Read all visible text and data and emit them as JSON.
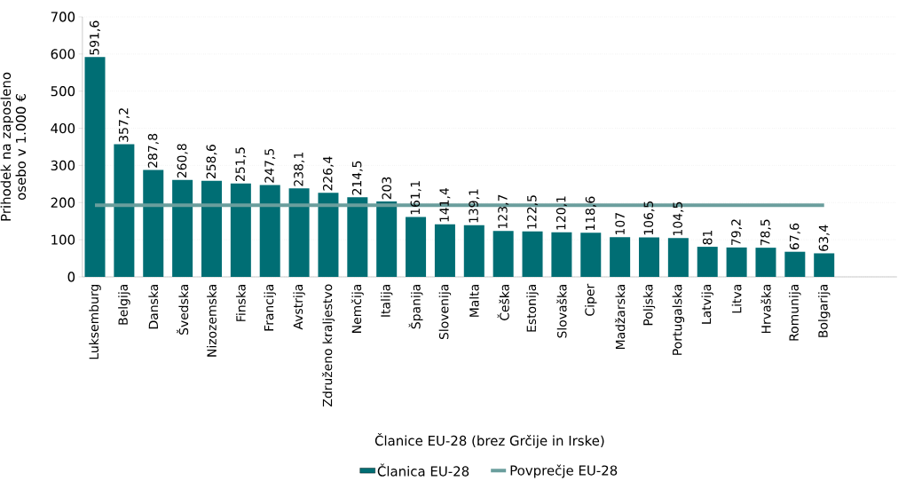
{
  "chart_data": {
    "type": "bar",
    "xlabel": "Članice EU-28 (brez Grčije in Irske)",
    "ylabel": "Prihodek na zaposleno osebo v 1.000 €",
    "categories": [
      "Luksemburg",
      "Belgija",
      "Danska",
      "Švedska",
      "Nizozemska",
      "Finska",
      "Francija",
      "Avstrija",
      "Združeno kraljestvo",
      "Nemčija",
      "Italija",
      "Španija",
      "Slovenija",
      "Malta",
      "Češka",
      "Estonija",
      "Slovaška",
      "Ciper",
      "Madžarska",
      "Poljska",
      "Portugalska",
      "Latvija",
      "Litva",
      "Hrvaška",
      "Romunija",
      "Bolgarija"
    ],
    "series": [
      {
        "name": "Članica EU-28",
        "color": "#006e74",
        "values": [
          591.6,
          357.2,
          287.8,
          260.8,
          258.6,
          251.5,
          247.5,
          238.1,
          226.4,
          214.5,
          203,
          161.1,
          141.4,
          139.1,
          123.7,
          122.5,
          120.1,
          118.6,
          107,
          106.5,
          104.5,
          81,
          79.2,
          78.5,
          67.6,
          63.4
        ],
        "value_labels": [
          "591,6",
          "357,2",
          "287,8",
          "260,8",
          "258,6",
          "251,5",
          "247,5",
          "238,1",
          "226,4",
          "214,5",
          "203",
          "161,1",
          "141,4",
          "139,1",
          "123,7",
          "122,5",
          "120,1",
          "118,6",
          "107",
          "106,5",
          "104,5",
          "81",
          "79,2",
          "78,5",
          "67,6",
          "63,4"
        ]
      },
      {
        "name": "Povprečje EU-28",
        "type": "line",
        "color": "#6a9e9d",
        "values": [
          193,
          193,
          193,
          193,
          193,
          193,
          193,
          193,
          193,
          193,
          193,
          193,
          193,
          193,
          193,
          193,
          193,
          193,
          193,
          193,
          193,
          193,
          193,
          193,
          193,
          193
        ]
      }
    ],
    "ylim": [
      0,
      700
    ],
    "yticks": [
      0,
      100,
      200,
      300,
      400,
      500,
      600,
      700
    ],
    "grid": "y",
    "legend": "bottom"
  }
}
